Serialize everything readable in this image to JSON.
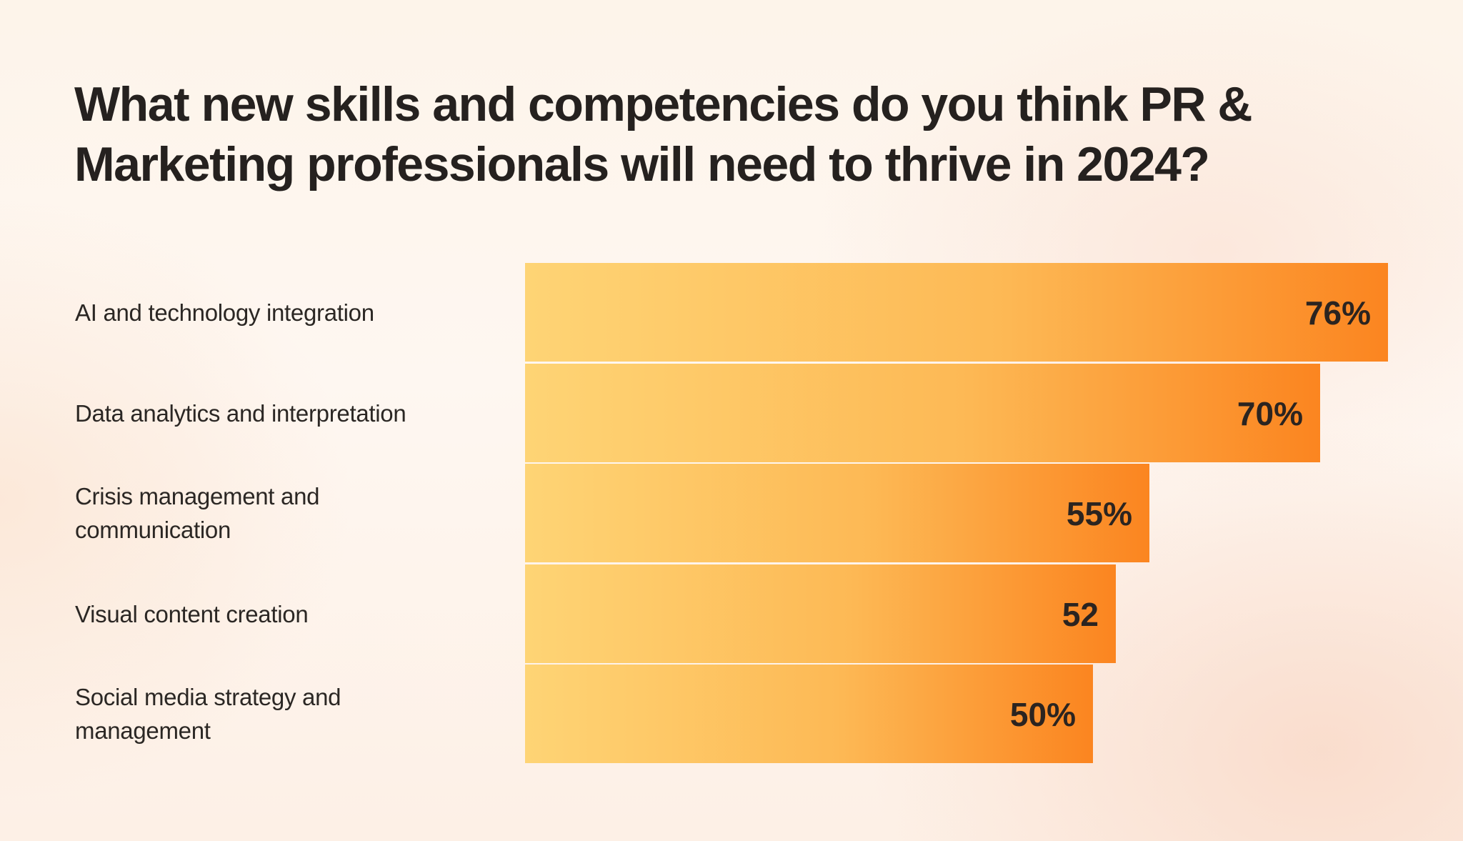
{
  "chart_data": {
    "type": "bar",
    "orientation": "horizontal",
    "title": "What new skills and competencies do you think PR & Marketing professionals will need to thrive in 2024?",
    "categories": [
      "AI and technology integration",
      "Data analytics and interpretation",
      "Crisis management and communication",
      "Visual content creation",
      "Social media strategy and management"
    ],
    "values": [
      76,
      70,
      55,
      52,
      50
    ],
    "value_labels": [
      "76%",
      "70%",
      "55%",
      "52",
      "50%"
    ],
    "unit": "%",
    "xlabel": "",
    "ylabel": "",
    "xlim": [
      0,
      76
    ],
    "grid": false,
    "legend": "none"
  },
  "colors": {
    "bar_start": "#fed475",
    "bar_mid": "#fdb955",
    "bar_end": "#fb8520",
    "text": "#2b2724"
  }
}
